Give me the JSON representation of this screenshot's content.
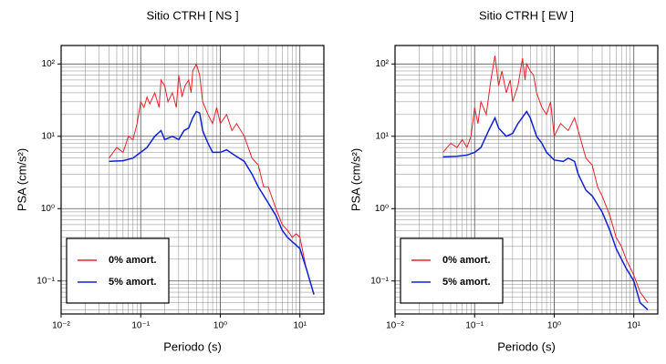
{
  "chart_data": [
    {
      "type": "line",
      "title": "Sitio CTRH [ NS ]",
      "x_label": "Periodo (s)",
      "y_label": "PSA (cm/s²)",
      "log_x": true,
      "log_y": true,
      "grid": true,
      "minor_grid": true,
      "legend": "lower left",
      "xlim": [
        0.01,
        20
      ],
      "ylim": [
        0.035,
        180
      ],
      "xticks": [
        {
          "value": 0.01,
          "label": "10⁻²"
        },
        {
          "value": 0.1,
          "label": "10⁻¹"
        },
        {
          "value": 1,
          "label": "10⁰"
        },
        {
          "value": 10,
          "label": "10¹"
        }
      ],
      "yticks": [
        {
          "value": 0.1,
          "label": "10⁻¹"
        },
        {
          "value": 1,
          "label": "10⁰"
        },
        {
          "value": 10,
          "label": "10¹"
        },
        {
          "value": 100,
          "label": "10²"
        }
      ],
      "series": [
        {
          "name": "0% amort.",
          "color": "#e8202a",
          "x": [
            0.04,
            0.05,
            0.06,
            0.07,
            0.08,
            0.09,
            0.1,
            0.11,
            0.12,
            0.13,
            0.15,
            0.17,
            0.18,
            0.2,
            0.22,
            0.25,
            0.28,
            0.3,
            0.33,
            0.36,
            0.4,
            0.43,
            0.45,
            0.5,
            0.55,
            0.6,
            0.7,
            0.8,
            0.9,
            1.0,
            1.2,
            1.4,
            1.6,
            2,
            2.5,
            3,
            3.5,
            4,
            5,
            6,
            7,
            8,
            9,
            10,
            12,
            15
          ],
          "values": [
            5,
            7,
            6,
            10,
            9,
            15,
            30,
            25,
            35,
            28,
            40,
            25,
            60,
            50,
            30,
            40,
            25,
            70,
            35,
            50,
            60,
            40,
            80,
            100,
            70,
            30,
            20,
            15,
            25,
            15,
            20,
            12,
            15,
            10,
            5,
            4,
            2,
            2,
            1,
            0.6,
            0.5,
            0.4,
            0.45,
            0.4,
            0.15,
            0.065
          ]
        },
        {
          "name": "5% amort.",
          "color": "#1020d8",
          "x": [
            0.04,
            0.06,
            0.08,
            0.1,
            0.12,
            0.15,
            0.18,
            0.2,
            0.25,
            0.3,
            0.35,
            0.4,
            0.45,
            0.5,
            0.55,
            0.6,
            0.7,
            0.8,
            1.0,
            1.2,
            1.5,
            2,
            2.5,
            3,
            4,
            5,
            6,
            7,
            8,
            10,
            12,
            15
          ],
          "values": [
            4.5,
            4.6,
            5,
            6,
            7,
            10,
            12,
            9,
            10,
            9,
            12,
            13,
            18,
            22,
            21,
            12,
            8,
            6,
            6,
            6.5,
            5.5,
            4.5,
            3,
            2,
            1.2,
            0.8,
            0.5,
            0.4,
            0.35,
            0.28,
            0.15,
            0.065
          ]
        }
      ]
    },
    {
      "type": "line",
      "title": "Sitio CTRH [ EW ]",
      "x_label": "Periodo (s)",
      "y_label": "PSA (cm/s²)",
      "log_x": true,
      "log_y": true,
      "grid": true,
      "minor_grid": true,
      "legend": "lower left",
      "xlim": [
        0.01,
        20
      ],
      "ylim": [
        0.035,
        180
      ],
      "xticks": [
        {
          "value": 0.01,
          "label": "10⁻²"
        },
        {
          "value": 0.1,
          "label": "10⁻¹"
        },
        {
          "value": 1,
          "label": "10⁰"
        },
        {
          "value": 10,
          "label": "10¹"
        }
      ],
      "yticks": [
        {
          "value": 0.1,
          "label": "10⁻¹"
        },
        {
          "value": 1,
          "label": "10⁰"
        },
        {
          "value": 10,
          "label": "10¹"
        },
        {
          "value": 100,
          "label": "10²"
        }
      ],
      "series": [
        {
          "name": "0% amort.",
          "color": "#e8202a",
          "x": [
            0.04,
            0.05,
            0.06,
            0.07,
            0.08,
            0.09,
            0.1,
            0.11,
            0.12,
            0.14,
            0.16,
            0.18,
            0.2,
            0.22,
            0.25,
            0.28,
            0.3,
            0.35,
            0.4,
            0.43,
            0.45,
            0.5,
            0.55,
            0.6,
            0.7,
            0.8,
            0.9,
            1.0,
            1.2,
            1.5,
            1.8,
            2,
            2.5,
            3,
            3.5,
            4,
            5,
            6,
            7,
            8,
            10,
            12,
            15
          ],
          "values": [
            6,
            8,
            7,
            9,
            7,
            10,
            25,
            15,
            30,
            20,
            60,
            130,
            50,
            80,
            40,
            60,
            30,
            50,
            120,
            60,
            100,
            80,
            70,
            40,
            25,
            20,
            30,
            10,
            15,
            12,
            18,
            12,
            5,
            4,
            2,
            1.5,
            0.8,
            0.4,
            0.3,
            0.2,
            0.12,
            0.07,
            0.05
          ]
        },
        {
          "name": "5% amort.",
          "color": "#1020d8",
          "x": [
            0.04,
            0.06,
            0.08,
            0.1,
            0.12,
            0.15,
            0.18,
            0.2,
            0.25,
            0.3,
            0.35,
            0.45,
            0.5,
            0.6,
            0.7,
            0.8,
            1.0,
            1.3,
            1.5,
            1.8,
            2,
            2.5,
            3,
            4,
            5,
            6,
            7,
            8,
            10,
            12,
            15
          ],
          "values": [
            5.2,
            5.3,
            5.5,
            6,
            7,
            12,
            18,
            13,
            10,
            11,
            15,
            22,
            18,
            10,
            8,
            6,
            4.7,
            4.5,
            5,
            4.5,
            3,
            1.8,
            1.5,
            0.9,
            0.5,
            0.28,
            0.2,
            0.15,
            0.1,
            0.05,
            0.04
          ]
        }
      ]
    }
  ]
}
